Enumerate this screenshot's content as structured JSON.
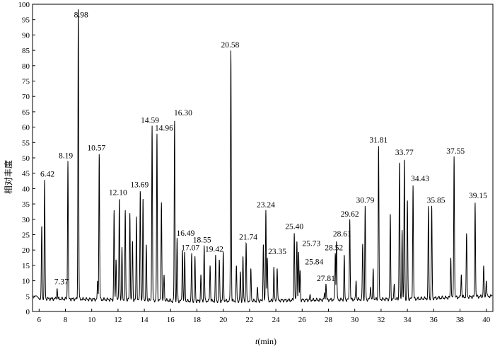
{
  "chart_data": {
    "type": "line",
    "title": "",
    "xlabel": "t(min)",
    "xlabel_italic_part": "t",
    "xlabel_unit": "(min)",
    "ylabel": "相对丰度",
    "xlim": [
      5.5,
      40.5
    ],
    "ylim": [
      0,
      100
    ],
    "xticks": [
      6,
      8,
      10,
      12,
      14,
      16,
      18,
      20,
      22,
      24,
      26,
      28,
      30,
      32,
      34,
      36,
      38,
      40
    ],
    "yticks": [
      0,
      5,
      10,
      15,
      20,
      25,
      30,
      35,
      40,
      45,
      50,
      55,
      60,
      65,
      70,
      75,
      80,
      85,
      90,
      95,
      100
    ],
    "grid": false,
    "legend": "none",
    "line_color": "#000000",
    "peaks": [
      {
        "x": 6.2,
        "y": 28
      },
      {
        "x": 6.42,
        "y": 43,
        "label": "6.42"
      },
      {
        "x": 7.37,
        "y": 7.5,
        "label": "7.37"
      },
      {
        "x": 8.19,
        "y": 49,
        "label": "8.19"
      },
      {
        "x": 8.98,
        "y": 100,
        "label": "8.98"
      },
      {
        "x": 10.45,
        "y": 10
      },
      {
        "x": 10.57,
        "y": 51.5,
        "label": "10.57"
      },
      {
        "x": 11.7,
        "y": 33
      },
      {
        "x": 11.85,
        "y": 17
      },
      {
        "x": 12.1,
        "y": 37,
        "label": "12.10"
      },
      {
        "x": 12.3,
        "y": 21
      },
      {
        "x": 12.55,
        "y": 33
      },
      {
        "x": 12.9,
        "y": 32
      },
      {
        "x": 13.1,
        "y": 23
      },
      {
        "x": 13.4,
        "y": 31
      },
      {
        "x": 13.69,
        "y": 39.5,
        "label": "13.69"
      },
      {
        "x": 13.9,
        "y": 37
      },
      {
        "x": 14.15,
        "y": 22
      },
      {
        "x": 14.59,
        "y": 60.5,
        "label": "14.59"
      },
      {
        "x": 14.96,
        "y": 58,
        "label": "14.96"
      },
      {
        "x": 15.3,
        "y": 35.5
      },
      {
        "x": 15.5,
        "y": 12
      },
      {
        "x": 16.3,
        "y": 62.5,
        "label": "16.30"
      },
      {
        "x": 16.49,
        "y": 24,
        "label": "16.49"
      },
      {
        "x": 16.9,
        "y": 20
      },
      {
        "x": 17.07,
        "y": 19.5,
        "label": "17.07"
      },
      {
        "x": 17.6,
        "y": 19
      },
      {
        "x": 17.85,
        "y": 18
      },
      {
        "x": 18.3,
        "y": 12
      },
      {
        "x": 18.55,
        "y": 21.5,
        "label": "18.55"
      },
      {
        "x": 19,
        "y": 15
      },
      {
        "x": 19.42,
        "y": 18.5,
        "label": "19.42"
      },
      {
        "x": 19.7,
        "y": 17
      },
      {
        "x": 20,
        "y": 19.5
      },
      {
        "x": 20.58,
        "y": 85,
        "label": "20.58"
      },
      {
        "x": 21,
        "y": 15
      },
      {
        "x": 21.3,
        "y": 13
      },
      {
        "x": 21.5,
        "y": 18
      },
      {
        "x": 21.74,
        "y": 22.5,
        "label": "21.74"
      },
      {
        "x": 22.1,
        "y": 14
      },
      {
        "x": 22.6,
        "y": 8
      },
      {
        "x": 23.05,
        "y": 22
      },
      {
        "x": 23.24,
        "y": 33,
        "label": "23.24"
      },
      {
        "x": 23.35,
        "y": 17.5,
        "label": "23.35"
      },
      {
        "x": 23.85,
        "y": 14.5
      },
      {
        "x": 24.1,
        "y": 14
      },
      {
        "x": 25.4,
        "y": 25.5,
        "label": "25.40"
      },
      {
        "x": 25.6,
        "y": 23
      },
      {
        "x": 25.73,
        "y": 19.5,
        "label": "25.73"
      },
      {
        "x": 25.84,
        "y": 13.5,
        "label": "25.84"
      },
      {
        "x": 26.6,
        "y": 5.5
      },
      {
        "x": 27.7,
        "y": 6
      },
      {
        "x": 27.81,
        "y": 9,
        "label": "27.81"
      },
      {
        "x": 28.52,
        "y": 19,
        "label": "28.52"
      },
      {
        "x": 28.61,
        "y": 23,
        "label": "28.61"
      },
      {
        "x": 29.2,
        "y": 18.5
      },
      {
        "x": 29.62,
        "y": 30,
        "label": "29.62"
      },
      {
        "x": 30.1,
        "y": 10
      },
      {
        "x": 30.6,
        "y": 22
      },
      {
        "x": 30.79,
        "y": 34.5,
        "label": "30.79"
      },
      {
        "x": 31.2,
        "y": 8
      },
      {
        "x": 31.4,
        "y": 14
      },
      {
        "x": 31.81,
        "y": 54,
        "label": "31.81"
      },
      {
        "x": 32.7,
        "y": 32
      },
      {
        "x": 33.0,
        "y": 9
      },
      {
        "x": 33.4,
        "y": 49
      },
      {
        "x": 33.6,
        "y": 26.5
      },
      {
        "x": 33.77,
        "y": 50,
        "label": "33.77"
      },
      {
        "x": 34,
        "y": 36.5
      },
      {
        "x": 34.43,
        "y": 41,
        "label": "34.43"
      },
      {
        "x": 35.6,
        "y": 34.5
      },
      {
        "x": 35.85,
        "y": 34.5,
        "label": "35.85"
      },
      {
        "x": 37.3,
        "y": 17.5
      },
      {
        "x": 37.55,
        "y": 50.5,
        "label": "37.55"
      },
      {
        "x": 38.1,
        "y": 12
      },
      {
        "x": 38.5,
        "y": 25.5
      },
      {
        "x": 39.15,
        "y": 35.5,
        "label": "39.15"
      },
      {
        "x": 39.8,
        "y": 15
      },
      {
        "x": 40.0,
        "y": 10
      }
    ]
  }
}
